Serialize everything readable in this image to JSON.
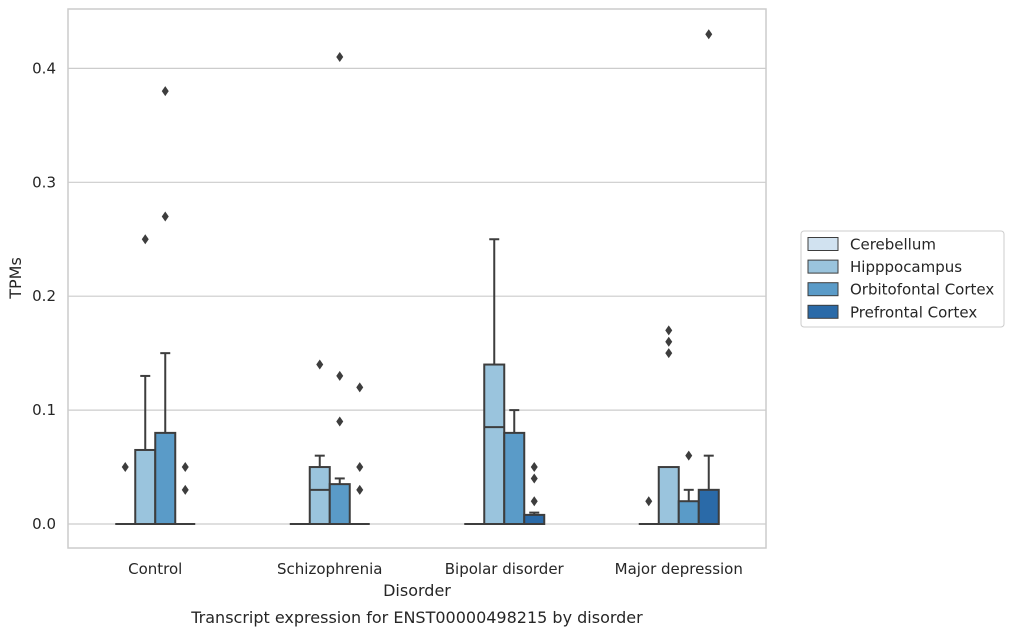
{
  "caption": "Transcript expression for ENST00000498215 by disorder",
  "chart_data": {
    "type": "box",
    "xlabel": "Disorder",
    "ylabel": "TPMs",
    "ylim": [
      -0.021,
      0.455
    ],
    "yticks": [
      "0.0",
      "0.1",
      "0.2",
      "0.3",
      "0.4"
    ],
    "grid": "horizontal",
    "legend_position": "right",
    "categories": [
      "Control",
      "Schizophrenia",
      "Bipolar disorder",
      "Major depression"
    ],
    "series": [
      {
        "name": "Cerebellum",
        "color": "#d1e2f0",
        "boxes": [
          {
            "q1": 0,
            "median": 0,
            "q3": 0,
            "whisker_low": 0,
            "whisker_high": 0,
            "outliers": [
              0.05
            ]
          },
          {
            "q1": 0,
            "median": 0,
            "q3": 0,
            "whisker_low": 0,
            "whisker_high": 0,
            "outliers": []
          },
          {
            "q1": 0,
            "median": 0,
            "q3": 0,
            "whisker_low": 0,
            "whisker_high": 0,
            "outliers": []
          },
          {
            "q1": 0,
            "median": 0,
            "q3": 0,
            "whisker_low": 0,
            "whisker_high": 0,
            "outliers": [
              0.02
            ]
          }
        ]
      },
      {
        "name": "Hipppocampus",
        "color": "#9ac4dd",
        "boxes": [
          {
            "q1": 0,
            "median": 0,
            "q3": 0.065,
            "whisker_low": 0,
            "whisker_high": 0.13,
            "outliers": [
              0.25
            ]
          },
          {
            "q1": 0,
            "median": 0.03,
            "q3": 0.05,
            "whisker_low": 0,
            "whisker_high": 0.06,
            "outliers": [
              0.14
            ]
          },
          {
            "q1": 0,
            "median": 0.085,
            "q3": 0.14,
            "whisker_low": 0,
            "whisker_high": 0.25,
            "outliers": []
          },
          {
            "q1": 0,
            "median": 0,
            "q3": 0.05,
            "whisker_low": 0,
            "whisker_high": 0.05,
            "outliers": [
              0.15,
              0.16,
              0.17
            ]
          }
        ]
      },
      {
        "name": "Orbitofontal Cortex",
        "color": "#5a9bc8",
        "boxes": [
          {
            "q1": 0,
            "median": 0,
            "q3": 0.08,
            "whisker_low": 0,
            "whisker_high": 0.15,
            "outliers": [
              0.27,
              0.38
            ]
          },
          {
            "q1": 0,
            "median": 0,
            "q3": 0.035,
            "whisker_low": 0,
            "whisker_high": 0.04,
            "outliers": [
              0.09,
              0.13,
              0.41
            ]
          },
          {
            "q1": 0,
            "median": 0,
            "q3": 0.08,
            "whisker_low": 0,
            "whisker_high": 0.1,
            "outliers": []
          },
          {
            "q1": 0,
            "median": 0,
            "q3": 0.02,
            "whisker_low": 0,
            "whisker_high": 0.03,
            "outliers": [
              0.06
            ]
          }
        ]
      },
      {
        "name": "Prefrontal Cortex",
        "color": "#2a6aa8",
        "boxes": [
          {
            "q1": 0,
            "median": 0,
            "q3": 0,
            "whisker_low": 0,
            "whisker_high": 0,
            "outliers": [
              0.03,
              0.05
            ]
          },
          {
            "q1": 0,
            "median": 0,
            "q3": 0,
            "whisker_low": 0,
            "whisker_high": 0,
            "outliers": [
              0.03,
              0.05,
              0.12
            ]
          },
          {
            "q1": 0,
            "median": 0,
            "q3": 0.008,
            "whisker_low": 0,
            "whisker_high": 0.01,
            "outliers": [
              0.02,
              0.04,
              0.05
            ]
          },
          {
            "q1": 0,
            "median": 0,
            "q3": 0.03,
            "whisker_low": 0,
            "whisker_high": 0.06,
            "outliers": [
              0.43
            ]
          }
        ]
      }
    ]
  }
}
